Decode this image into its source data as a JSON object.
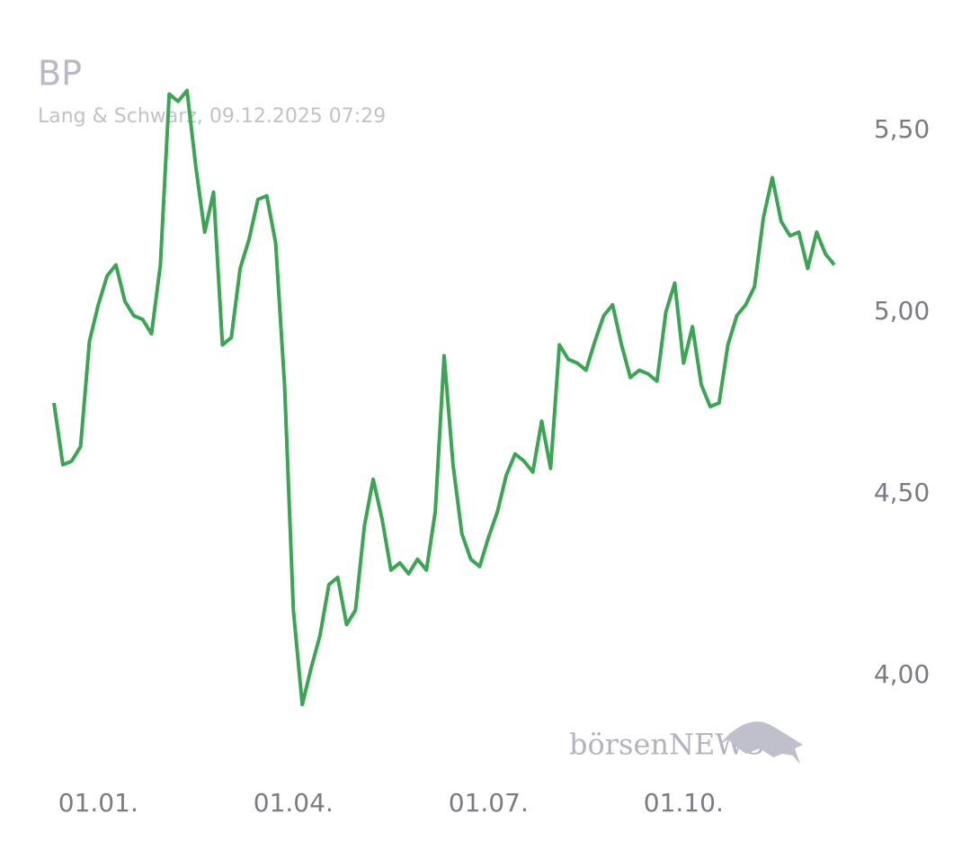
{
  "chart_data": {
    "type": "line",
    "title": "BP",
    "subtitle": "Lang & Schwarz, 09.12.2025 07:29",
    "watermark": "börsenNEWS",
    "categories": [
      null,
      null,
      null,
      null,
      null,
      "01.01.",
      null,
      null,
      null,
      null,
      null,
      null,
      null,
      null,
      null,
      null,
      null,
      null,
      null,
      null,
      null,
      null,
      null,
      null,
      null,
      null,
      null,
      "01.04.",
      null,
      null,
      null,
      null,
      null,
      null,
      null,
      null,
      null,
      null,
      null,
      null,
      null,
      null,
      null,
      null,
      null,
      null,
      null,
      null,
      null,
      "01.07.",
      null,
      null,
      null,
      null,
      null,
      null,
      null,
      null,
      null,
      null,
      null,
      null,
      null,
      null,
      null,
      null,
      null,
      null,
      null,
      null,
      null,
      "01.10.",
      null,
      null,
      null,
      null,
      null,
      null,
      null,
      null,
      null,
      null,
      null,
      null,
      null,
      null,
      null,
      null,
      null
    ],
    "series": [
      {
        "name": "BP",
        "color": "#3aa552",
        "values": [
          4.75,
          4.58,
          4.59,
          4.63,
          4.92,
          5.02,
          5.1,
          5.13,
          5.03,
          4.99,
          4.98,
          4.94,
          5.13,
          5.6,
          5.58,
          5.61,
          5.4,
          5.22,
          5.33,
          4.91,
          4.93,
          5.12,
          5.2,
          5.31,
          5.32,
          5.19,
          4.8,
          4.18,
          3.92,
          4.02,
          4.11,
          4.25,
          4.27,
          4.14,
          4.18,
          4.41,
          4.54,
          4.43,
          4.29,
          4.31,
          4.28,
          4.32,
          4.29,
          4.45,
          4.88,
          4.58,
          4.39,
          4.32,
          4.3,
          4.38,
          4.45,
          4.55,
          4.61,
          4.59,
          4.56,
          4.7,
          4.57,
          4.91,
          4.87,
          4.86,
          4.84,
          4.92,
          4.99,
          5.02,
          4.91,
          4.82,
          4.84,
          4.83,
          4.81,
          5.0,
          5.08,
          4.86,
          4.96,
          4.8,
          4.74,
          4.75,
          4.91,
          4.99,
          5.02,
          5.07,
          5.26,
          5.37,
          5.25,
          5.21,
          5.22,
          5.12,
          5.22,
          5.16,
          5.13
        ]
      }
    ],
    "ylim": [
      3.85,
      5.65
    ],
    "yticks": [
      {
        "value": 4,
        "label": "4,00"
      },
      {
        "value": 4.5,
        "label": "4,50"
      },
      {
        "value": 5,
        "label": "5,00"
      },
      {
        "value": 5.5,
        "label": "5,50"
      }
    ],
    "grid": false
  }
}
